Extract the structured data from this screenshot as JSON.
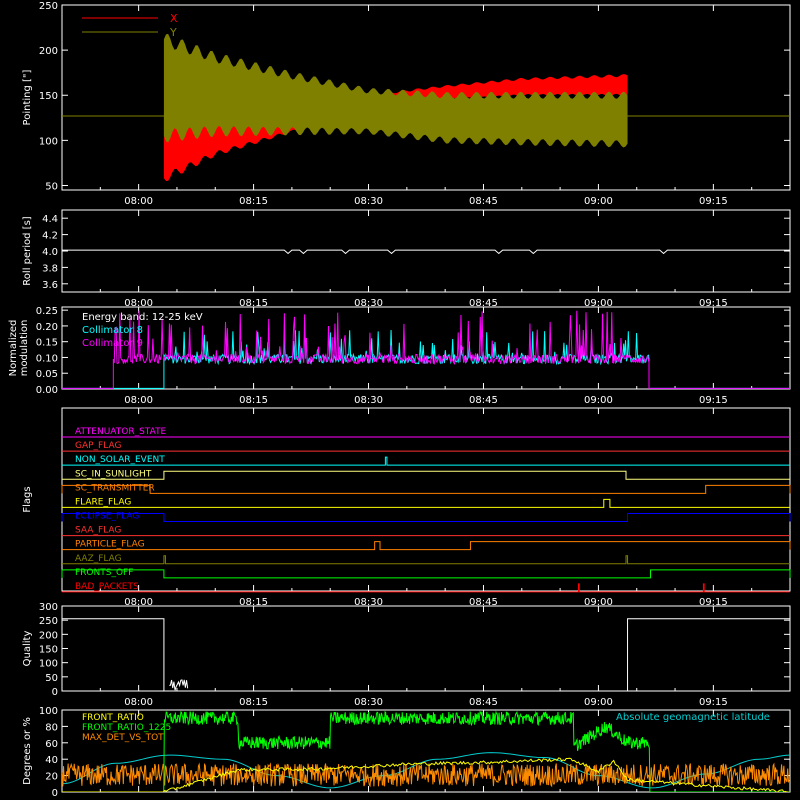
{
  "colors": {
    "background": "#000000",
    "axis": "#ffffff",
    "x_series": "#ff0000",
    "y_series": "#808000",
    "collimator8": "#00ffff",
    "collimator9": "#ff00ff",
    "quality": "#ffffff",
    "front_ratio": "#ffff00",
    "front_ratio_1225": "#00ff00",
    "max_det_vs_tot": "#ff8c00",
    "geomag": "#00ced1"
  },
  "time_axis": {
    "start_minutes": 470,
    "end_minutes": 565,
    "tick_minutes": [
      480,
      495,
      510,
      525,
      540,
      555
    ],
    "tick_labels": [
      "08:00",
      "08:15",
      "08:30",
      "08:45",
      "09:00",
      "09:15"
    ]
  },
  "chart_data": [
    {
      "id": "pointing",
      "type": "line",
      "ylabel": "Pointing [\"]",
      "ylim": [
        45,
        250
      ],
      "yticks": [
        50,
        100,
        150,
        200,
        250
      ],
      "ytick_labels": [
        "50",
        "100",
        "150",
        "200",
        "250"
      ],
      "legend": [
        "X",
        "Y"
      ],
      "baseline": 127,
      "active_start_minutes": 483.3,
      "active_end_minutes": 543.8,
      "series": [
        {
          "name": "X",
          "envelope_minutes": [
            483.3,
            490,
            500,
            510,
            520,
            530,
            543.8
          ],
          "lower": [
            58,
            85,
            110,
            130,
            145,
            150,
            150
          ],
          "upper": [
            130,
            125,
            130,
            150,
            160,
            168,
            172
          ]
        },
        {
          "name": "Y",
          "envelope_minutes": [
            483.3,
            490,
            500,
            510,
            520,
            530,
            543.8
          ],
          "lower": [
            105,
            110,
            110,
            110,
            100,
            98,
            96
          ],
          "upper": [
            212,
            192,
            172,
            155,
            150,
            150,
            150
          ]
        }
      ]
    },
    {
      "id": "roll_period",
      "type": "line",
      "ylabel": "Roll period [s]",
      "ylim": [
        3.5,
        4.5
      ],
      "yticks": [
        3.6,
        3.8,
        4.0,
        4.2,
        4.4
      ],
      "ytick_labels": [
        "3.6",
        "3.8",
        "4.0",
        "4.2",
        "4.4"
      ],
      "series": [
        {
          "name": "",
          "value": 4.01
        }
      ]
    },
    {
      "id": "modulation",
      "type": "line",
      "ylabel": "Normalized modulation",
      "ylim": [
        0,
        0.26
      ],
      "yticks": [
        0,
        0.05,
        0.1,
        0.15,
        0.2,
        0.25
      ],
      "ytick_labels": [
        "0.00",
        "0.05",
        "0.10",
        "0.15",
        "0.20",
        "0.25"
      ],
      "annotation": "Energy band: 12-25 keV",
      "series": [
        {
          "name": "Collimator 8",
          "active": [
            [
              483.3,
              546.6
            ]
          ],
          "baseline": 0.095,
          "peak": 0.19
        },
        {
          "name": "Collimator 9",
          "active": [
            [
              476.7,
              546.6
            ]
          ],
          "baseline": 0.095,
          "peak": 0.25
        }
      ]
    },
    {
      "id": "flags",
      "type": "line",
      "ylabel": "Flags",
      "series": [
        {
          "name": "ATTENUATOR_STATE",
          "color": "#ff00ff",
          "steps": []
        },
        {
          "name": "GAP_FLAG",
          "color": "#ff3030",
          "steps": []
        },
        {
          "name": "NON_SOLAR_EVENT",
          "color": "#00ffff",
          "steps": [
            [
              512.2,
              512.4
            ]
          ]
        },
        {
          "name": "SC_IN_SUNLIGHT",
          "color": "#ffff80",
          "steps": [
            [
              483.3,
              543.6
            ]
          ]
        },
        {
          "name": "SC_TRANSMITTER",
          "color": "#ff8000",
          "steps": [
            [
              470.0,
              481.5
            ],
            [
              554.0,
              565.0
            ]
          ]
        },
        {
          "name": "FLARE_FLAG",
          "color": "#ffff00",
          "steps": [
            [
              540.7,
              541.5
            ]
          ]
        },
        {
          "name": "ECLIPSE_FLAG",
          "color": "#0000ff",
          "steps": [
            [
              470.0,
              483.3
            ],
            [
              543.8,
              565.0
            ]
          ]
        },
        {
          "name": "SAA_FLAG",
          "color": "#ff3030",
          "steps": []
        },
        {
          "name": "PARTICLE_FLAG",
          "color": "#ff8000",
          "steps": [
            [
              510.8,
              511.5
            ],
            [
              523.3,
              565.0
            ]
          ]
        },
        {
          "name": "AAZ_FLAG",
          "color": "#808000",
          "steps": [
            [
              483.3,
              483.5
            ],
            [
              543.6,
              543.8
            ]
          ]
        },
        {
          "name": "FRONTS_OFF",
          "color": "#00ff00",
          "steps": [
            [
              470.0,
              483.3
            ],
            [
              546.8,
              565.0
            ]
          ]
        },
        {
          "name": "BAD_PACKETS",
          "color": "#ff0000",
          "steps": [
            [
              537.4,
              537.5
            ],
            [
              553.7,
              553.8
            ]
          ]
        }
      ]
    },
    {
      "id": "quality",
      "type": "line",
      "ylabel": "Quality",
      "ylim": [
        0,
        300
      ],
      "yticks": [
        0,
        50,
        100,
        150,
        200,
        250,
        300
      ],
      "ytick_labels": [
        "0",
        "50",
        "100",
        "150",
        "200",
        "250",
        "300"
      ],
      "series": [
        {
          "name": "",
          "x": [
            470,
            483.3,
            483.3,
            543.8,
            543.8,
            565
          ],
          "y": [
            255,
            255,
            0,
            0,
            255,
            255
          ]
        }
      ]
    },
    {
      "id": "geomag",
      "type": "line",
      "ylabel": "Degrees or %",
      "ylim": [
        0,
        100
      ],
      "yticks": [
        0,
        20,
        40,
        60,
        80,
        100
      ],
      "ytick_labels": [
        "0",
        "20",
        "40",
        "60",
        "80",
        "100"
      ],
      "annotation": "Absolute geomagnetic latitude",
      "series": [
        {
          "name": "FRONT_RATIO",
          "x": [
            470,
            483.3,
            493,
            503,
            515,
            525,
            536,
            537,
            540,
            542,
            543.8,
            565
          ],
          "y": [
            0,
            0,
            27,
            28,
            34,
            36,
            40,
            38,
            25,
            38,
            15,
            0
          ]
        },
        {
          "name": "FRONT_RATIO_1225",
          "x": [
            470,
            483.3,
            483.3,
            493,
            493,
            505,
            505,
            536.8,
            536.8,
            541,
            543.8,
            546.7,
            546.7,
            565
          ],
          "y": [
            0,
            0,
            90,
            90,
            60,
            60,
            90,
            90,
            55,
            80,
            60,
            60,
            0,
            0
          ]
        },
        {
          "name": "MAX_DET_VS_TOT",
          "base": 18,
          "noise": 14
        },
        {
          "name": "",
          "x": [
            470,
            477,
            484,
            491,
            498,
            505,
            512,
            519,
            526,
            533,
            540,
            547,
            554,
            561,
            565
          ],
          "y": [
            10,
            35,
            45,
            40,
            20,
            5,
            20,
            40,
            48,
            42,
            20,
            5,
            22,
            40,
            45
          ]
        }
      ]
    }
  ]
}
